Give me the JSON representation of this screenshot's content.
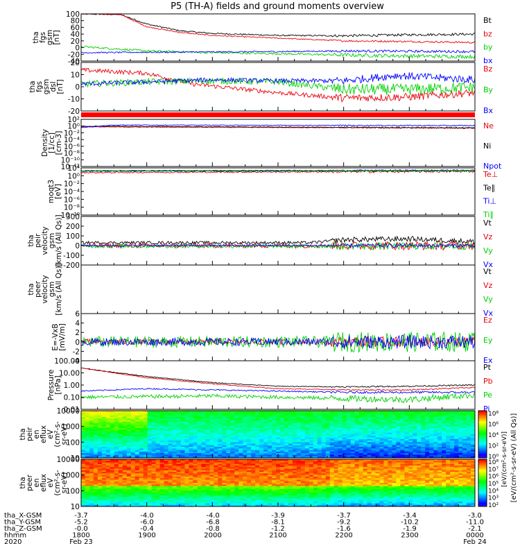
{
  "title": "P5 (TH-A) fields and ground moments overview",
  "colors": {
    "black": "#000000",
    "red": "#e8000b",
    "green": "#00d000",
    "blue": "#0000ff"
  },
  "chart_data": {
    "type": "line",
    "time_axis": {
      "tick_labels_hhmm": [
        "1800",
        "1900",
        "2000",
        "2100",
        "2200",
        "2300",
        "0000"
      ],
      "range_hours": [
        18.0,
        24.0
      ],
      "start_date": "Feb 23",
      "end_date": "Feb 24",
      "year": "2020",
      "ephemeris": [
        {
          "label": "tha_X-GSM",
          "values": [
            "-3.7",
            "-4.0",
            "-4.0",
            "-3.9",
            "-3.7",
            "-3.4",
            "-3.0"
          ]
        },
        {
          "label": "tha_Y-GSM",
          "values": [
            "-5.2",
            "-6.0",
            "-6.8",
            "-8.1",
            "-9.2",
            "-10.2",
            "-11.0"
          ]
        },
        {
          "label": "tha_Z-GSM",
          "values": [
            "-0.0",
            "-0.4",
            "-0.8",
            "-1.2",
            "-1.6",
            "-1.9",
            "-2.1"
          ]
        },
        {
          "label": "hhmm",
          "values": [
            "1800",
            "1900",
            "2000",
            "2100",
            "2200",
            "2300",
            "0000"
          ]
        }
      ]
    },
    "panels": [
      {
        "id": "fgs-magnitude",
        "ylabel": [
          "tha",
          "fgs",
          "gsm",
          "[nT]"
        ],
        "ylim": [
          -40,
          100
        ],
        "scale": "linear",
        "tick_labels": [
          "100",
          "80",
          "60",
          "40",
          "20",
          "0",
          "-20",
          "-40"
        ],
        "series": [
          {
            "name": "Bt",
            "color": "black",
            "trend": [
              [
                18.0,
                100
              ],
              [
                18.6,
                98
              ],
              [
                19.0,
                70
              ],
              [
                19.5,
                50
              ],
              [
                20.0,
                42
              ],
              [
                21.0,
                36
              ],
              [
                22.0,
                35
              ],
              [
                23.0,
                38
              ],
              [
                24.0,
                40
              ]
            ],
            "noise": 2
          },
          {
            "name": "bz",
            "color": "red",
            "trend": [
              [
                18.0,
                100
              ],
              [
                18.6,
                98
              ],
              [
                19.0,
                62
              ],
              [
                19.5,
                45
              ],
              [
                20.0,
                36
              ],
              [
                21.0,
                28
              ],
              [
                22.0,
                20
              ],
              [
                23.0,
                18
              ],
              [
                24.0,
                15
              ]
            ],
            "noise": 1.5
          },
          {
            "name": "by",
            "color": "green",
            "trend": [
              [
                18.0,
                3
              ],
              [
                19.0,
                -10
              ],
              [
                20.0,
                -15
              ],
              [
                21.0,
                -18
              ],
              [
                22.0,
                -22
              ],
              [
                23.0,
                -25
              ],
              [
                24.0,
                -27
              ]
            ],
            "noise": 3
          },
          {
            "name": "bx",
            "color": "blue",
            "trend": [
              [
                18.0,
                -15
              ],
              [
                19.0,
                -14
              ],
              [
                20.0,
                -13
              ],
              [
                21.0,
                -12
              ],
              [
                22.0,
                -10
              ],
              [
                23.0,
                -11
              ],
              [
                24.0,
                -12
              ]
            ],
            "noise": 2
          }
        ]
      },
      {
        "id": "fgs-components",
        "ylabel": [
          "tha",
          "fgs",
          "gsm",
          "dsl",
          "[nT]"
        ],
        "ylim": [
          -25,
          20
        ],
        "scale": "linear",
        "tick_labels": [
          "20",
          "10",
          "0",
          "-10",
          "-20"
        ],
        "series": [
          {
            "name": "Bz",
            "color": "red",
            "trend": [
              [
                18.0,
                13
              ],
              [
                19.0,
                10
              ],
              [
                19.7,
                0
              ],
              [
                20.5,
                -5
              ],
              [
                21.0,
                -8
              ],
              [
                22.0,
                -13
              ],
              [
                23.0,
                -12
              ],
              [
                24.0,
                -8
              ]
            ],
            "noise": 2
          },
          {
            "name": "By",
            "color": "green",
            "trend": [
              [
                18.0,
                0
              ],
              [
                19.0,
                2
              ],
              [
                20.0,
                3
              ],
              [
                21.0,
                2
              ],
              [
                22.0,
                -5
              ],
              [
                23.0,
                -5
              ],
              [
                24.0,
                -3
              ]
            ],
            "noise": 3
          },
          {
            "name": "Bx",
            "color": "blue",
            "trend": [
              [
                18.0,
                0
              ],
              [
                19.0,
                2
              ],
              [
                20.0,
                4
              ],
              [
                21.0,
                3
              ],
              [
                22.0,
                3
              ],
              [
                22.8,
                8
              ],
              [
                24.0,
                4
              ]
            ],
            "noise": 2
          }
        ]
      },
      {
        "id": "density",
        "ylabel": [
          "Density",
          "[1/cc]",
          "[cm-3]"
        ],
        "ylim_log10": [
          -12,
          3
        ],
        "scale": "log",
        "tick_labels": [
          "10²",
          "10⁰",
          "10⁻²",
          "10⁻⁴",
          "10⁻⁶",
          "10⁻⁸",
          "10⁻¹⁰",
          "10⁻¹²"
        ],
        "series": [
          {
            "name": "Ne",
            "color": "red",
            "trend": [
              [
                18.0,
                0.6
              ],
              [
                24.0,
                0.2
              ]
            ],
            "noise": 0.1
          },
          {
            "name": "Ni",
            "color": "black",
            "trend": [
              [
                18.0,
                0.8
              ],
              [
                24.0,
                0.3
              ]
            ],
            "noise": 0.1
          },
          {
            "name": "Npot",
            "color": "blue",
            "trend": [
              [
                18.0,
                0.4
              ],
              [
                18.5,
                1.2
              ],
              [
                24.0,
                1.0
              ]
            ],
            "noise": 0.1
          }
        ]
      },
      {
        "id": "temperature",
        "ylabel": [
          "moqt3",
          "[eV]"
        ],
        "ylim_log10": [
          -10,
          4
        ],
        "scale": "log",
        "tick_labels": [
          "10⁴",
          "10⁰",
          "10⁻²",
          "10⁻⁴",
          "10⁻⁶",
          "10⁻⁸",
          "10⁻¹⁰"
        ],
        "series": [
          {
            "name": "Te⊥",
            "color": "red",
            "trend": [
              [
                18.0,
                2.6
              ],
              [
                24.0,
                3.0
              ]
            ],
            "noise": 0.2
          },
          {
            "name": "Te∥",
            "color": "black",
            "trend": [
              [
                18.0,
                3.0
              ],
              [
                24.0,
                3.1
              ]
            ],
            "noise": 0.1
          },
          {
            "name": "Ti⊥",
            "color": "blue",
            "trend": [
              [
                18.0,
                3.2
              ],
              [
                24.0,
                3.3
              ]
            ],
            "noise": 0.1
          },
          {
            "name": "Ti∥",
            "color": "green",
            "trend": [
              [
                18.0,
                3.1
              ],
              [
                24.0,
                3.2
              ]
            ],
            "noise": 0.1
          }
        ]
      },
      {
        "id": "peir-velocity",
        "ylabel": [
          "tha",
          "peir",
          "velocity",
          "gsm",
          "[km/s (All Qs)]"
        ],
        "ylim": [
          -200,
          300
        ],
        "scale": "linear",
        "tick_labels": [
          "300",
          "200",
          "100",
          "0",
          "-100",
          "-200"
        ],
        "series": [
          {
            "name": "Vt",
            "color": "black",
            "trend": [
              [
                18.0,
                30
              ],
              [
                21.5,
                30
              ],
              [
                22.0,
                60
              ],
              [
                23.0,
                70
              ],
              [
                24.0,
                40
              ]
            ],
            "noise": 15
          },
          {
            "name": "Vz",
            "color": "red",
            "trend": [
              [
                18.0,
                0
              ],
              [
                24.0,
                0
              ]
            ],
            "noise": 25
          },
          {
            "name": "Vy",
            "color": "green",
            "trend": [
              [
                18.0,
                -5
              ],
              [
                24.0,
                -5
              ]
            ],
            "noise": 20
          },
          {
            "name": "Vx",
            "color": "blue",
            "trend": [
              [
                18.0,
                0
              ],
              [
                24.0,
                0
              ]
            ],
            "noise": 10
          }
        ]
      },
      {
        "id": "peer-velocity",
        "ylabel": [
          "tha",
          "peer",
          "velocity",
          "gsm",
          "[km/s (All Qs)]"
        ],
        "tick_labels": [],
        "series": [
          {
            "name": "Vt",
            "color": "black"
          },
          {
            "name": "Vz",
            "color": "red"
          },
          {
            "name": "Vy",
            "color": "green"
          },
          {
            "name": "Vx",
            "color": "blue"
          }
        ]
      },
      {
        "id": "efield",
        "ylabel": [
          "E=-VxB",
          "[mV/m]"
        ],
        "ylim": [
          -4,
          6
        ],
        "scale": "linear",
        "tick_labels": [
          "6",
          "4",
          "2",
          "0",
          "-2",
          "-4"
        ],
        "series": [
          {
            "name": "Ez",
            "color": "red",
            "trend": [
              [
                18.0,
                0
              ],
              [
                24.0,
                0
              ]
            ],
            "noise": 0.6
          },
          {
            "name": "Ey",
            "color": "green",
            "trend": [
              [
                18.0,
                0
              ],
              [
                19.0,
                0
              ],
              [
                24.0,
                0
              ]
            ],
            "noise": 1.2
          },
          {
            "name": "Ex",
            "color": "blue",
            "trend": [
              [
                18.0,
                0
              ],
              [
                24.0,
                0
              ]
            ],
            "noise": 0.8
          }
        ]
      },
      {
        "id": "pressure",
        "ylabel": [
          "Pressure",
          "[nPa]"
        ],
        "ylim_log10": [
          -2,
          2
        ],
        "scale": "log",
        "tick_labels": [
          "100.00",
          "10.00",
          "1.00",
          "0.10",
          "0.01"
        ],
        "series": [
          {
            "name": "Pt",
            "color": "black",
            "trend": [
              [
                18.0,
                1.4
              ],
              [
                19.0,
                0.7
              ],
              [
                20.0,
                0.2
              ],
              [
                21.0,
                -0.1
              ],
              [
                22.0,
                -0.15
              ],
              [
                23.0,
                -0.1
              ],
              [
                24.0,
                0.0
              ]
            ],
            "noise": 0.03
          },
          {
            "name": "Pb",
            "color": "red",
            "trend": [
              [
                18.0,
                1.4
              ],
              [
                19.0,
                0.6
              ],
              [
                20.0,
                0.1
              ],
              [
                21.0,
                -0.3
              ],
              [
                22.0,
                -0.4
              ],
              [
                23.0,
                -0.4
              ],
              [
                24.0,
                -0.2
              ]
            ],
            "noise": 0.03
          },
          {
            "name": "Pe",
            "color": "green",
            "trend": [
              [
                18.0,
                -1.0
              ],
              [
                20.0,
                -0.9
              ],
              [
                22.0,
                -1.1
              ],
              [
                23.0,
                -1.2
              ],
              [
                24.0,
                -0.8
              ]
            ],
            "noise": 0.15
          },
          {
            "name": "Pi",
            "color": "blue",
            "trend": [
              [
                18.0,
                -0.5
              ],
              [
                19.0,
                -0.3
              ],
              [
                20.0,
                -0.4
              ],
              [
                22.0,
                -0.6
              ],
              [
                24.0,
                -0.6
              ]
            ],
            "noise": 0.05
          }
        ]
      },
      {
        "id": "peir-spectrogram",
        "ylabel": [
          "tha",
          "peir",
          "en",
          "eflux",
          "eV",
          "(cm²-s-",
          "sr-eV)"
        ],
        "scale": "log",
        "ylim": [
          5,
          25000
        ],
        "tick_labels": [
          "10000",
          "1000",
          "100",
          "10"
        ]
      },
      {
        "id": "peer-spectrogram",
        "ylabel": [
          "tha",
          "peer",
          "en",
          "eflux",
          "eV",
          "(cm²-s-",
          "sr-eV)"
        ],
        "scale": "log",
        "ylim": [
          5,
          25000
        ],
        "tick_labels": [
          "10000",
          "1000",
          "100",
          "10"
        ]
      }
    ],
    "colorbars": [
      {
        "label": "[eV/(cm²-s-sr-eV) (All Qs)]",
        "tick_labels": [
          "10⁸",
          "10⁶",
          "10⁴",
          "10²",
          "10⁰"
        ]
      },
      {
        "label": "[eV/(cm²-s-sr-eV)]",
        "tick_labels": [
          "10⁸",
          "10⁷",
          "10⁶",
          "10⁵",
          "10⁴",
          "10³",
          "10²"
        ]
      }
    ]
  }
}
